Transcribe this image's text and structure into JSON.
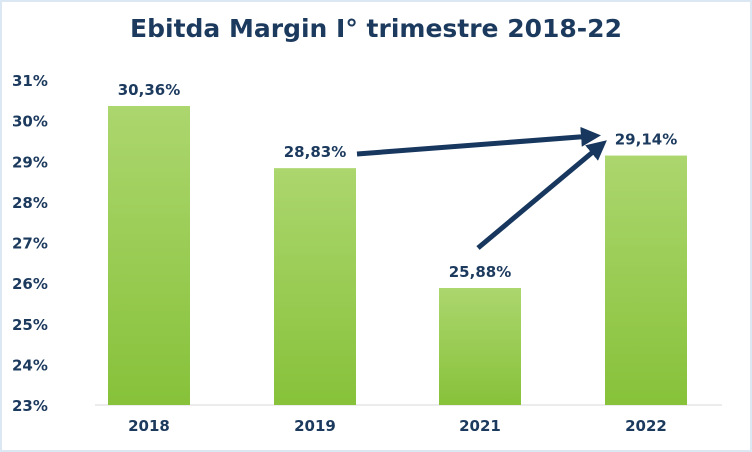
{
  "chart_data": {
    "type": "bar",
    "title": "Ebitda Margin I° trimestre 2018-22",
    "categories": [
      "2018",
      "2019",
      "2021",
      "2022"
    ],
    "values": [
      30.36,
      28.83,
      25.88,
      29.14
    ],
    "data_labels": [
      "30,36%",
      "28,83%",
      "25,88%",
      "29,14%"
    ],
    "xlabel": "",
    "ylabel": "",
    "ylim": [
      23,
      31
    ],
    "yticks": [
      "23%",
      "24%",
      "25%",
      "26%",
      "27%",
      "28%",
      "29%",
      "30%",
      "31%"
    ],
    "grid": false,
    "annotations": [
      {
        "type": "arrow",
        "from": "2019",
        "to": "2022"
      },
      {
        "type": "arrow",
        "from": "2021",
        "to": "2022"
      }
    ],
    "colors": {
      "bar_top": "#acd66e",
      "bar_bottom": "#87c23a",
      "text": "#1c3a5e",
      "arrow": "#17375e"
    }
  }
}
